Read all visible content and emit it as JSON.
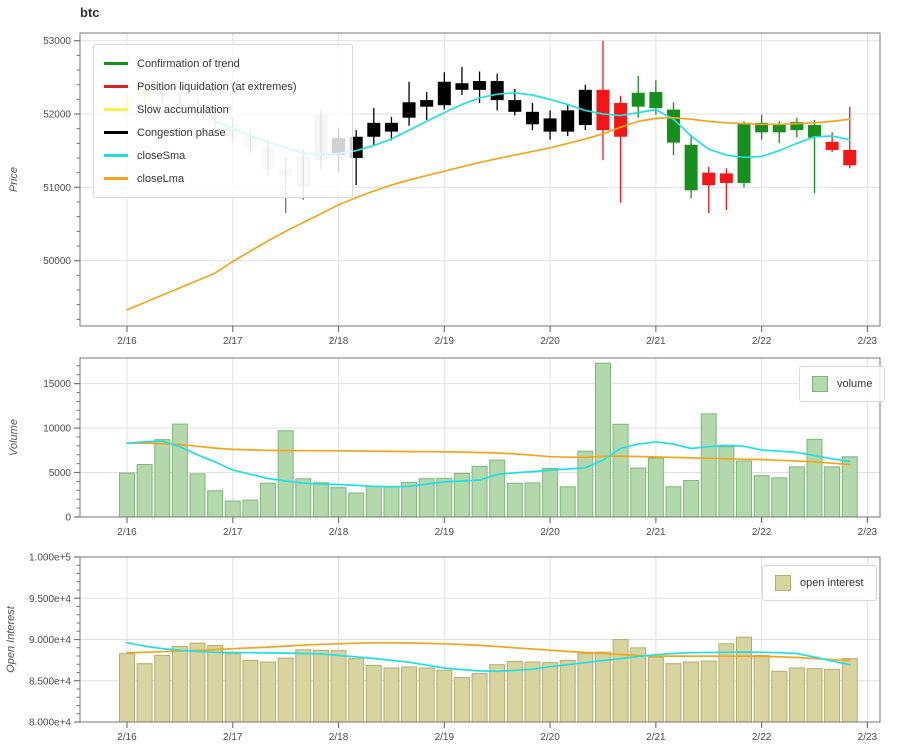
{
  "title": "btc",
  "axes": {
    "price": {
      "label": "Price",
      "ticks": [
        {
          "label": "53000",
          "value": 53000
        },
        {
          "label": "52000",
          "value": 52000
        },
        {
          "label": "51000",
          "value": 51000
        },
        {
          "label": "50000",
          "value": 50000
        }
      ]
    },
    "volume": {
      "label": "Volume",
      "ticks": [
        {
          "label": "15000",
          "value": 15000
        },
        {
          "label": "10000",
          "value": 10000
        },
        {
          "label": "5000",
          "value": 5000
        },
        {
          "label": "0",
          "value": 0
        }
      ]
    },
    "open_interest": {
      "label": "Open Interest",
      "ticks": [
        {
          "label": "1.000e+5",
          "value": 100000
        },
        {
          "label": "9.500e+4",
          "value": 95000
        },
        {
          "label": "9.000e+4",
          "value": 90000
        },
        {
          "label": "8.500e+4",
          "value": 85000
        },
        {
          "label": "8.000e+4",
          "value": 80000
        }
      ]
    },
    "x_ticks": [
      "2/16",
      "2/17",
      "2/18",
      "2/19",
      "2/20",
      "2/21",
      "2/22",
      "2/23"
    ]
  },
  "legend_price": [
    {
      "label": "Confirmation of trend",
      "color": "#178f1e"
    },
    {
      "label": "Position liquidation (at extremes)",
      "color": "#d92121"
    },
    {
      "label": "Slow accumulation",
      "color": "#ffee4d"
    },
    {
      "label": "Congestion phase",
      "color": "#000000"
    },
    {
      "label": "closeSma",
      "color": "#22dfe6"
    },
    {
      "label": "closeLma",
      "color": "#f5a51d"
    }
  ],
  "legend_volume": {
    "label": "volume"
  },
  "legend_oi": {
    "label": "open interest"
  },
  "colors": {
    "confirmation": "#178f1e",
    "liquidation": "#f21616",
    "accumulation": "#ffe633",
    "congestion": "#000000",
    "sma": "#22dfe6",
    "lma": "#f5a51d",
    "volume_fill": "#b2d8ab",
    "volume_edge": "#7fb87a",
    "oi_fill": "#d8d4a0",
    "oi_edge": "#b3ae6e",
    "grid": "#e1e1e1",
    "spine": "#777777",
    "tick_text": "#4a4a4a",
    "axis_label": "#555555"
  },
  "chart_data": [
    {
      "type": "candlestick",
      "panel": "price",
      "title": "btc",
      "ylabel": "Price",
      "ylim": [
        49109,
        53105
      ],
      "x_categories_major": [
        "2/16",
        "2/17",
        "2/18",
        "2/19",
        "2/20",
        "2/21",
        "2/22",
        "2/23"
      ],
      "bars_per_day": 6,
      "columns": [
        "open",
        "high",
        "low",
        "close",
        "phase",
        "alpha"
      ],
      "candles": [
        [
          52080,
          52300,
          52000,
          52250,
          "accumulation",
          0.45
        ],
        [
          52250,
          52400,
          52150,
          52330,
          "accumulation",
          0.45
        ],
        [
          52300,
          52380,
          52150,
          52200,
          "congestion",
          0.08
        ],
        [
          52200,
          52300,
          52050,
          52120,
          "congestion",
          0.09
        ],
        [
          52120,
          52200,
          51950,
          52000,
          "congestion",
          0.1
        ],
        [
          52000,
          52080,
          51800,
          51870,
          "congestion",
          0.11
        ],
        [
          51870,
          51950,
          51600,
          51680,
          "congestion",
          0.12
        ],
        [
          51680,
          51780,
          51450,
          51550,
          "congestion",
          0.13
        ],
        [
          51550,
          51650,
          51150,
          51250,
          "congestion",
          0.15
        ],
        [
          51250,
          51400,
          50650,
          51150,
          "congestion",
          0.17
        ],
        [
          51420,
          51520,
          50830,
          51010,
          "congestion",
          0.19
        ],
        [
          51370,
          52050,
          51250,
          51990,
          "congestion",
          0.22
        ],
        [
          51670,
          51810,
          51200,
          51440,
          "congestion",
          1
        ],
        [
          51400,
          51780,
          51030,
          51690,
          "congestion",
          1
        ],
        [
          51690,
          52080,
          51580,
          51880,
          "congestion",
          1
        ],
        [
          51760,
          51960,
          51640,
          51880,
          "congestion",
          1
        ],
        [
          51950,
          52440,
          51840,
          52160,
          "congestion",
          1
        ],
        [
          52100,
          52300,
          51920,
          52190,
          "congestion",
          1
        ],
        [
          52120,
          52570,
          52060,
          52440,
          "congestion",
          1
        ],
        [
          52420,
          52640,
          52260,
          52330,
          "congestion",
          1
        ],
        [
          52330,
          52580,
          52150,
          52450,
          "congestion",
          1
        ],
        [
          52450,
          52550,
          52050,
          52190,
          "congestion",
          1
        ],
        [
          52190,
          52340,
          51980,
          52030,
          "congestion",
          1
        ],
        [
          52030,
          52150,
          51780,
          51860,
          "congestion",
          1
        ],
        [
          51940,
          52050,
          51650,
          51760,
          "congestion",
          1
        ],
        [
          51760,
          52120,
          51700,
          52050,
          "congestion",
          1
        ],
        [
          51850,
          52400,
          51780,
          52330,
          "congestion",
          1
        ],
        [
          52330,
          53000,
          51370,
          51780,
          "liquidation",
          1
        ],
        [
          52150,
          52250,
          50790,
          51690,
          "liquidation",
          1
        ],
        [
          52100,
          52520,
          51950,
          52290,
          "confirmation",
          1
        ],
        [
          52080,
          52460,
          51990,
          52300,
          "confirmation",
          1
        ],
        [
          52060,
          52160,
          51440,
          51610,
          "confirmation",
          1
        ],
        [
          51580,
          51720,
          50850,
          50960,
          "confirmation",
          1
        ],
        [
          51200,
          51280,
          50650,
          51030,
          "liquidation",
          1
        ],
        [
          51190,
          51260,
          50690,
          51060,
          "liquidation",
          1
        ],
        [
          51060,
          51900,
          51000,
          51880,
          "confirmation",
          1
        ],
        [
          51880,
          51990,
          51650,
          51750,
          "confirmation",
          1
        ],
        [
          51750,
          51900,
          51600,
          51850,
          "confirmation",
          1
        ],
        [
          51780,
          51950,
          51680,
          51890,
          "confirmation",
          1
        ],
        [
          51850,
          51920,
          50920,
          51680,
          "confirmation",
          1
        ],
        [
          51620,
          51750,
          51480,
          51510,
          "liquidation",
          1
        ],
        [
          51510,
          52100,
          51260,
          51300,
          "liquidation",
          1
        ]
      ],
      "overlays": {
        "closeSma": [
          null,
          null,
          null,
          null,
          null,
          51900,
          51800,
          51700,
          51620,
          51540,
          51470,
          51450,
          51460,
          51500,
          51570,
          51660,
          51780,
          51900,
          52020,
          52130,
          52220,
          52270,
          52290,
          52260,
          52200,
          52130,
          52050,
          52000,
          51980,
          52020,
          52060,
          51930,
          51700,
          51520,
          51440,
          51410,
          51420,
          51500,
          51600,
          51690,
          51700,
          51650
        ],
        "closeLma": [
          49330,
          49430,
          49530,
          49630,
          49730,
          49830,
          49990,
          50130,
          50270,
          50400,
          50520,
          50640,
          50760,
          50860,
          50950,
          51030,
          51100,
          51160,
          51220,
          51280,
          51340,
          51390,
          51440,
          51490,
          51540,
          51600,
          51660,
          51730,
          51820,
          51900,
          51940,
          51950,
          51930,
          51900,
          51880,
          51870,
          51860,
          51860,
          51870,
          51880,
          51900,
          51930
        ]
      }
    },
    {
      "type": "bar",
      "panel": "volume",
      "ylabel": "Volume",
      "legend": "volume",
      "ylim": [
        0,
        17880
      ],
      "values": [
        4950,
        5900,
        8700,
        10450,
        4850,
        2950,
        1800,
        1900,
        3800,
        9700,
        4300,
        3850,
        3300,
        2700,
        3450,
        3400,
        3900,
        4300,
        4350,
        4890,
        5700,
        6400,
        3800,
        3830,
        5460,
        3400,
        7400,
        17300,
        10430,
        5500,
        6630,
        3400,
        4100,
        11600,
        7900,
        6300,
        4650,
        4400,
        5640,
        8730,
        5640,
        6770
      ],
      "overlays": {
        "sma": [
          8300,
          8450,
          8550,
          7900,
          7000,
          6200,
          5270,
          4800,
          4330,
          4050,
          3800,
          3700,
          3650,
          3550,
          3450,
          3400,
          3450,
          3700,
          3950,
          4050,
          4150,
          4790,
          4960,
          5100,
          5270,
          5400,
          5530,
          6400,
          7700,
          8200,
          8460,
          8200,
          7700,
          7900,
          8050,
          7950,
          7530,
          7400,
          7270,
          6900,
          6550,
          6250
        ],
        "lma": [
          8300,
          8300,
          8250,
          8150,
          7950,
          7750,
          7600,
          7550,
          7500,
          7480,
          7460,
          7450,
          7440,
          7420,
          7400,
          7380,
          7360,
          7350,
          7330,
          7300,
          7250,
          7200,
          7100,
          6950,
          6780,
          6720,
          6700,
          6820,
          6850,
          6800,
          6750,
          6700,
          6650,
          6600,
          6550,
          6500,
          6450,
          6380,
          6300,
          6200,
          6050,
          5900
        ]
      }
    },
    {
      "type": "bar",
      "panel": "open_interest",
      "ylabel": "Open Interest",
      "legend": "open interest",
      "ylim": [
        80000,
        100000
      ],
      "values": [
        88280,
        87070,
        88070,
        89160,
        89560,
        89280,
        88280,
        87470,
        87270,
        87750,
        88760,
        88680,
        88640,
        87680,
        86870,
        86550,
        86670,
        86550,
        86270,
        85390,
        85870,
        86950,
        87350,
        87270,
        87190,
        87470,
        88280,
        88470,
        90000,
        88990,
        87870,
        87070,
        87270,
        87390,
        89480,
        90280,
        88070,
        86150,
        86550,
        86470,
        86390,
        87680
      ],
      "overlays": {
        "sma": [
          89600,
          89200,
          88900,
          88700,
          88550,
          88450,
          88420,
          88400,
          88380,
          88350,
          88300,
          88250,
          88070,
          87900,
          87700,
          87470,
          87250,
          86900,
          86550,
          86350,
          86200,
          86150,
          86250,
          86400,
          86700,
          86950,
          87190,
          87450,
          87680,
          87950,
          88160,
          88300,
          88400,
          88430,
          88450,
          88480,
          88450,
          88400,
          88300,
          87870,
          87400,
          86950
        ],
        "lma": [
          88400,
          88450,
          88520,
          88600,
          88680,
          88780,
          88880,
          88980,
          89080,
          89200,
          89320,
          89420,
          89480,
          89550,
          89600,
          89600,
          89570,
          89530,
          89480,
          89400,
          89280,
          89150,
          89000,
          88850,
          88700,
          88560,
          88430,
          88300,
          88180,
          88070,
          88000,
          87990,
          87990,
          87990,
          87980,
          87970,
          87950,
          87900,
          87820,
          87700,
          87560,
          87470
        ]
      }
    }
  ]
}
